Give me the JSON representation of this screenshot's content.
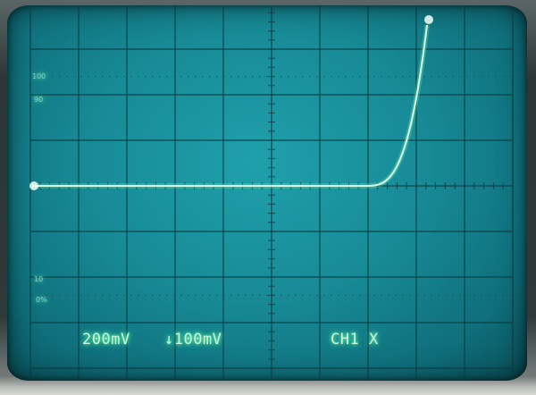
{
  "scope": {
    "phosphor_color": "#7dffb3",
    "graticule_color": "#0c3a40",
    "screen_color": "#178a96",
    "graticule": {
      "divisions_x": 10,
      "divisions_y": 8,
      "minor_ticks_per_division": 5
    },
    "markers": {
      "m100": "100",
      "m90": "90",
      "m10": "10",
      "m0": "0%"
    },
    "readout": {
      "ch1_scale": "200mV",
      "ch2_scale": "↓100mV",
      "mode": "CH1 X"
    }
  }
}
